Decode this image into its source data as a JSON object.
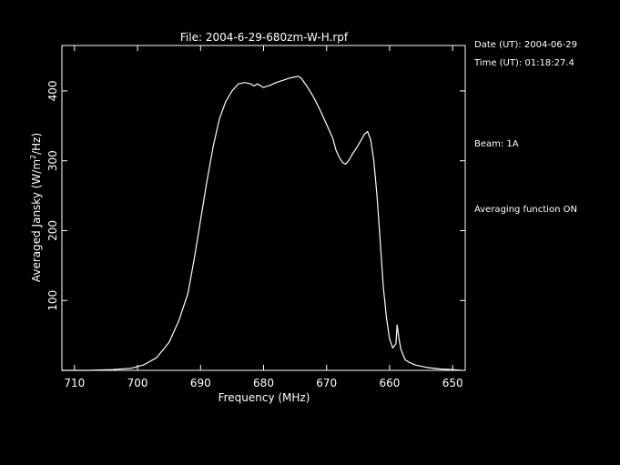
{
  "chart_data": {
    "type": "line",
    "title": "File: 2004-6-29-680zm-W-H.rpf",
    "xlabel": "Frequency (MHz)",
    "ylabel": "Averaged Jansky (W/m^2/Hz)",
    "xlim": [
      712,
      648
    ],
    "ylim": [
      0,
      465
    ],
    "x_ticks": [
      710,
      700,
      690,
      680,
      670,
      660,
      650
    ],
    "y_ticks": [
      100,
      200,
      300,
      400
    ],
    "grid": false,
    "series": [
      {
        "x": [
          712,
          708,
          704,
          701,
          699,
          697,
          695,
          693.5,
          692,
          691,
          690,
          689,
          688,
          687,
          686,
          685,
          684,
          683,
          682,
          681.5,
          681,
          680,
          679,
          678,
          677,
          676,
          675,
          674.5,
          674,
          673,
          672,
          671,
          670,
          669,
          668.5,
          668,
          667.5,
          667,
          666.5,
          666,
          665,
          664,
          663.5,
          663,
          662.5,
          662,
          661.5,
          661,
          660.5,
          660,
          659.5,
          659,
          658.8,
          658.5,
          658.2,
          658,
          657.5,
          657,
          656,
          655,
          654,
          652,
          650,
          648.5
        ],
        "y": [
          0,
          0,
          1,
          3,
          8,
          18,
          40,
          70,
          110,
          160,
          215,
          270,
          320,
          360,
          385,
          400,
          410,
          412,
          410,
          407,
          410,
          405,
          408,
          412,
          415,
          418,
          420,
          421,
          418,
          405,
          390,
          372,
          352,
          332,
          315,
          305,
          298,
          295,
          300,
          308,
          322,
          338,
          342,
          330,
          300,
          250,
          185,
          120,
          75,
          45,
          32,
          38,
          65,
          45,
          30,
          25,
          15,
          12,
          8,
          6,
          4,
          2,
          1,
          0
        ]
      }
    ]
  },
  "labels": {
    "y_axis_label_prefix": "Averaged Jansky (W/m",
    "y_axis_label_sup": "2",
    "y_axis_label_suffix": "/Hz)"
  },
  "side_panel": {
    "date": "Date (UT): 2004-06-29",
    "time": "Time (UT): 01:18:27.4",
    "beam": "Beam: 1A",
    "averaging": "Averaging function ON"
  },
  "colors": {
    "background": "#000000",
    "foreground": "#ffffff"
  }
}
